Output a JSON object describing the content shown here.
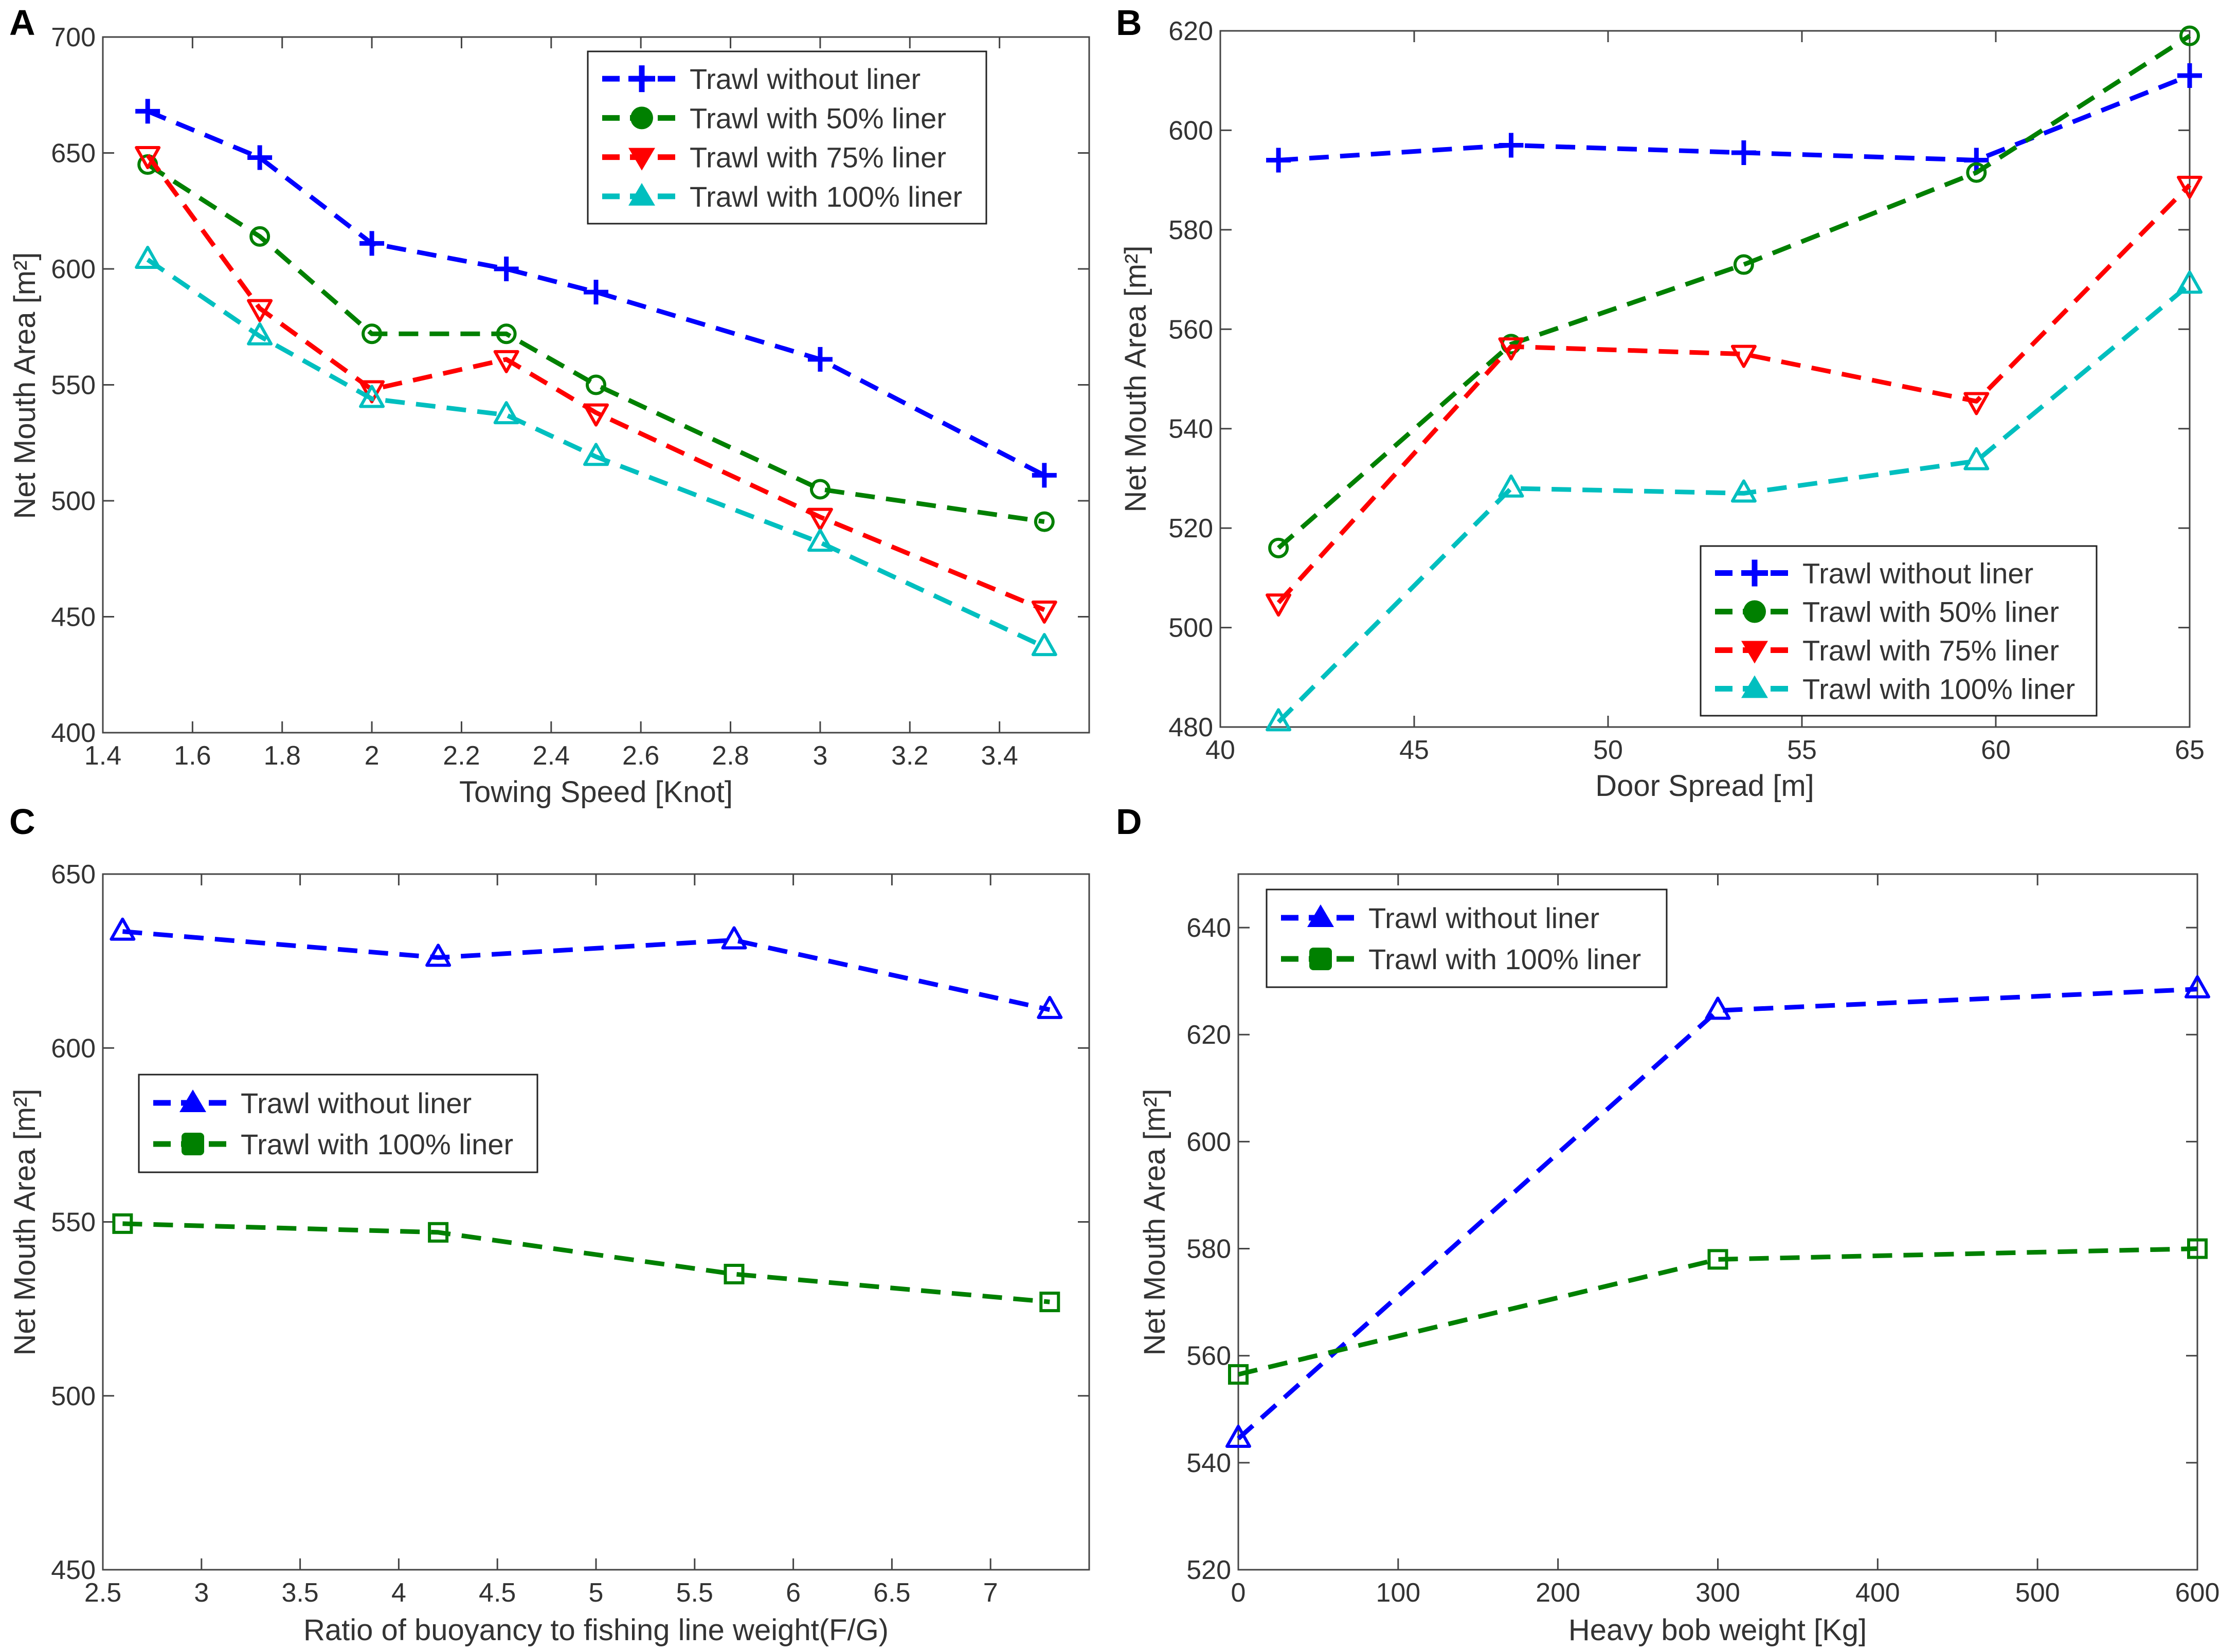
{
  "chart_data": [
    {
      "panel": "A",
      "type": "line",
      "title": "",
      "xlabel": "Towing Speed [Knot]",
      "ylabel": "Net Mouth Area [m²]",
      "xlim": [
        1.4,
        3.6
      ],
      "ylim": [
        400,
        700
      ],
      "xticks": [
        1.4,
        1.6,
        1.8,
        2,
        2.2,
        2.4,
        2.6,
        2.8,
        3,
        3.2,
        3.4
      ],
      "xtick_labels": [
        "1.4",
        "1.6",
        "1.8",
        "2",
        "2.2",
        "2.4",
        "2.6",
        "2.8",
        "3",
        "3.2",
        "3.4"
      ],
      "yticks": [
        400,
        450,
        500,
        550,
        600,
        650,
        700
      ],
      "ytick_labels": [
        "400",
        "450",
        "500",
        "550",
        "600",
        "650",
        "700"
      ],
      "legend_position": "top-right",
      "x": [
        1.5,
        1.75,
        2,
        2.3,
        2.5,
        3,
        3.5
      ],
      "series": [
        {
          "name": "Trawl without liner",
          "color": "#0000ff",
          "marker": "plus",
          "values": [
            668,
            648,
            611,
            600,
            590,
            561,
            511
          ]
        },
        {
          "name": "Trawl with 50% liner",
          "color": "#008000",
          "marker": "circle",
          "values": [
            645,
            614,
            572,
            572,
            550,
            505,
            491
          ]
        },
        {
          "name": "Trawl with 75% liner",
          "color": "#ff0000",
          "marker": "triangle-down",
          "values": [
            649,
            583,
            548,
            561,
            538,
            493,
            453
          ]
        },
        {
          "name": "Trawl with 100% liner",
          "color": "#00bfbf",
          "marker": "triangle-up",
          "values": [
            604,
            571,
            544,
            537,
            519,
            482,
            437
          ]
        }
      ]
    },
    {
      "panel": "B",
      "type": "line",
      "title": "",
      "xlabel": "Door Spread [m]",
      "ylabel": "Net Mouth Area [m²]",
      "xlim": [
        40,
        65
      ],
      "ylim": [
        480,
        620
      ],
      "xticks": [
        40,
        45,
        50,
        55,
        60,
        65
      ],
      "xtick_labels": [
        "40",
        "45",
        "50",
        "55",
        "60",
        "65"
      ],
      "yticks": [
        480,
        500,
        520,
        540,
        560,
        580,
        600,
        620
      ],
      "ytick_labels": [
        "480",
        "500",
        "520",
        "540",
        "560",
        "580",
        "600",
        "620"
      ],
      "legend_position": "bottom-right",
      "x": [
        41.5,
        47.5,
        53.5,
        59.5,
        65
      ],
      "series": [
        {
          "name": "Trawl without liner",
          "color": "#0000ff",
          "marker": "plus",
          "values": [
            594,
            597,
            595.5,
            594,
            611
          ]
        },
        {
          "name": "Trawl with 50% liner",
          "color": "#008000",
          "marker": "circle",
          "values": [
            516,
            557,
            573,
            591.5,
            619
          ]
        },
        {
          "name": "Trawl with 75% liner",
          "color": "#ff0000",
          "marker": "triangle-down",
          "values": [
            505,
            556.5,
            555,
            545.5,
            589
          ]
        },
        {
          "name": "Trawl with 100% liner",
          "color": "#00bfbf",
          "marker": "triangle-up",
          "values": [
            481,
            528,
            527,
            533.5,
            569
          ]
        }
      ]
    },
    {
      "panel": "C",
      "type": "line",
      "title": "",
      "xlabel": "Ratio of buoyancy to fishing line weight(F/G)",
      "ylabel": "Net Mouth Area [m²]",
      "xlim": [
        2.5,
        7.5
      ],
      "ylim": [
        450,
        650
      ],
      "xticks": [
        2.5,
        3,
        3.5,
        4,
        4.5,
        5,
        5.5,
        6,
        6.5,
        7
      ],
      "xtick_labels": [
        "2.5",
        "3",
        "3.5",
        "4",
        "4.5",
        "5",
        "5.5",
        "6",
        "6.5",
        "7"
      ],
      "yticks": [
        450,
        500,
        550,
        600,
        650
      ],
      "ytick_labels": [
        "450",
        "500",
        "550",
        "600",
        "650"
      ],
      "legend_position": "upper-left",
      "x": [
        2.6,
        4.2,
        5.7,
        7.3
      ],
      "series": [
        {
          "name": "Trawl without liner",
          "color": "#0000ff",
          "marker": "triangle-up",
          "values": [
            633.5,
            626,
            631,
            611
          ]
        },
        {
          "name": "Trawl with 100% liner",
          "color": "#008000",
          "marker": "square",
          "values": [
            549.5,
            547,
            535,
            527
          ]
        }
      ]
    },
    {
      "panel": "D",
      "type": "line",
      "title": "",
      "xlabel": "Heavy bob weight [Kg]",
      "ylabel": "Net Mouth Area [m²]",
      "xlim": [
        0,
        600
      ],
      "ylim": [
        520,
        650
      ],
      "xticks": [
        0,
        100,
        200,
        300,
        400,
        500,
        600
      ],
      "xtick_labels": [
        "0",
        "100",
        "200",
        "300",
        "400",
        "500",
        "600"
      ],
      "yticks": [
        520,
        540,
        560,
        580,
        600,
        620,
        640
      ],
      "ytick_labels": [
        "520",
        "540",
        "560",
        "580",
        "600",
        "620",
        "640"
      ],
      "legend_position": "top-left",
      "x": [
        0,
        300,
        600
      ],
      "series": [
        {
          "name": "Trawl without liner",
          "color": "#0000ff",
          "marker": "triangle-up",
          "values": [
            544.5,
            624.5,
            628.5
          ]
        },
        {
          "name": "Trawl with 100% liner",
          "color": "#008000",
          "marker": "square",
          "values": [
            556.5,
            578,
            580
          ]
        }
      ]
    }
  ]
}
